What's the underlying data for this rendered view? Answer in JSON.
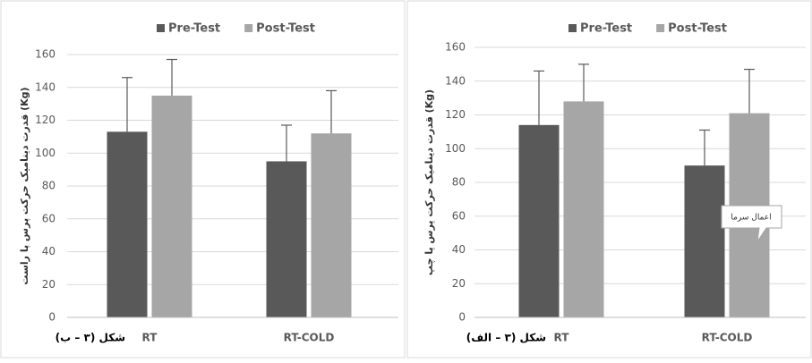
{
  "chart_data": [
    {
      "type": "bar",
      "y_label": "قدرت دینامیک حرکت پرس پا راست (Kg)",
      "caption": "شکل (۳ – ب)",
      "categories": [
        "RT",
        "RT-COLD"
      ],
      "series": [
        {
          "name": "Pre-Test",
          "color": "#595959",
          "values": [
            113,
            95
          ],
          "errors": [
            33,
            22
          ]
        },
        {
          "name": "Post-Test",
          "color": "#a6a6a6",
          "values": [
            135,
            112
          ],
          "errors": [
            22,
            26
          ]
        }
      ],
      "ylim": [
        0,
        160
      ],
      "yticks": [
        0,
        20,
        40,
        60,
        80,
        100,
        120,
        140,
        160
      ],
      "grid": true
    },
    {
      "type": "bar",
      "y_label": "قدرت دینامیک حرکت پرس پا چپ (Kg)",
      "caption": "شکل (۳ – الف)",
      "annotation": "اعمال سرما",
      "categories": [
        "RT",
        "RT-COLD"
      ],
      "series": [
        {
          "name": "Pre-Test",
          "color": "#595959",
          "values": [
            114,
            90
          ],
          "errors": [
            32,
            21
          ]
        },
        {
          "name": "Post-Test",
          "color": "#a6a6a6",
          "values": [
            128,
            121
          ],
          "errors": [
            22,
            26
          ]
        }
      ],
      "ylim": [
        0,
        160
      ],
      "yticks": [
        0,
        20,
        40,
        60,
        80,
        100,
        120,
        140,
        160
      ],
      "grid": true
    }
  ]
}
